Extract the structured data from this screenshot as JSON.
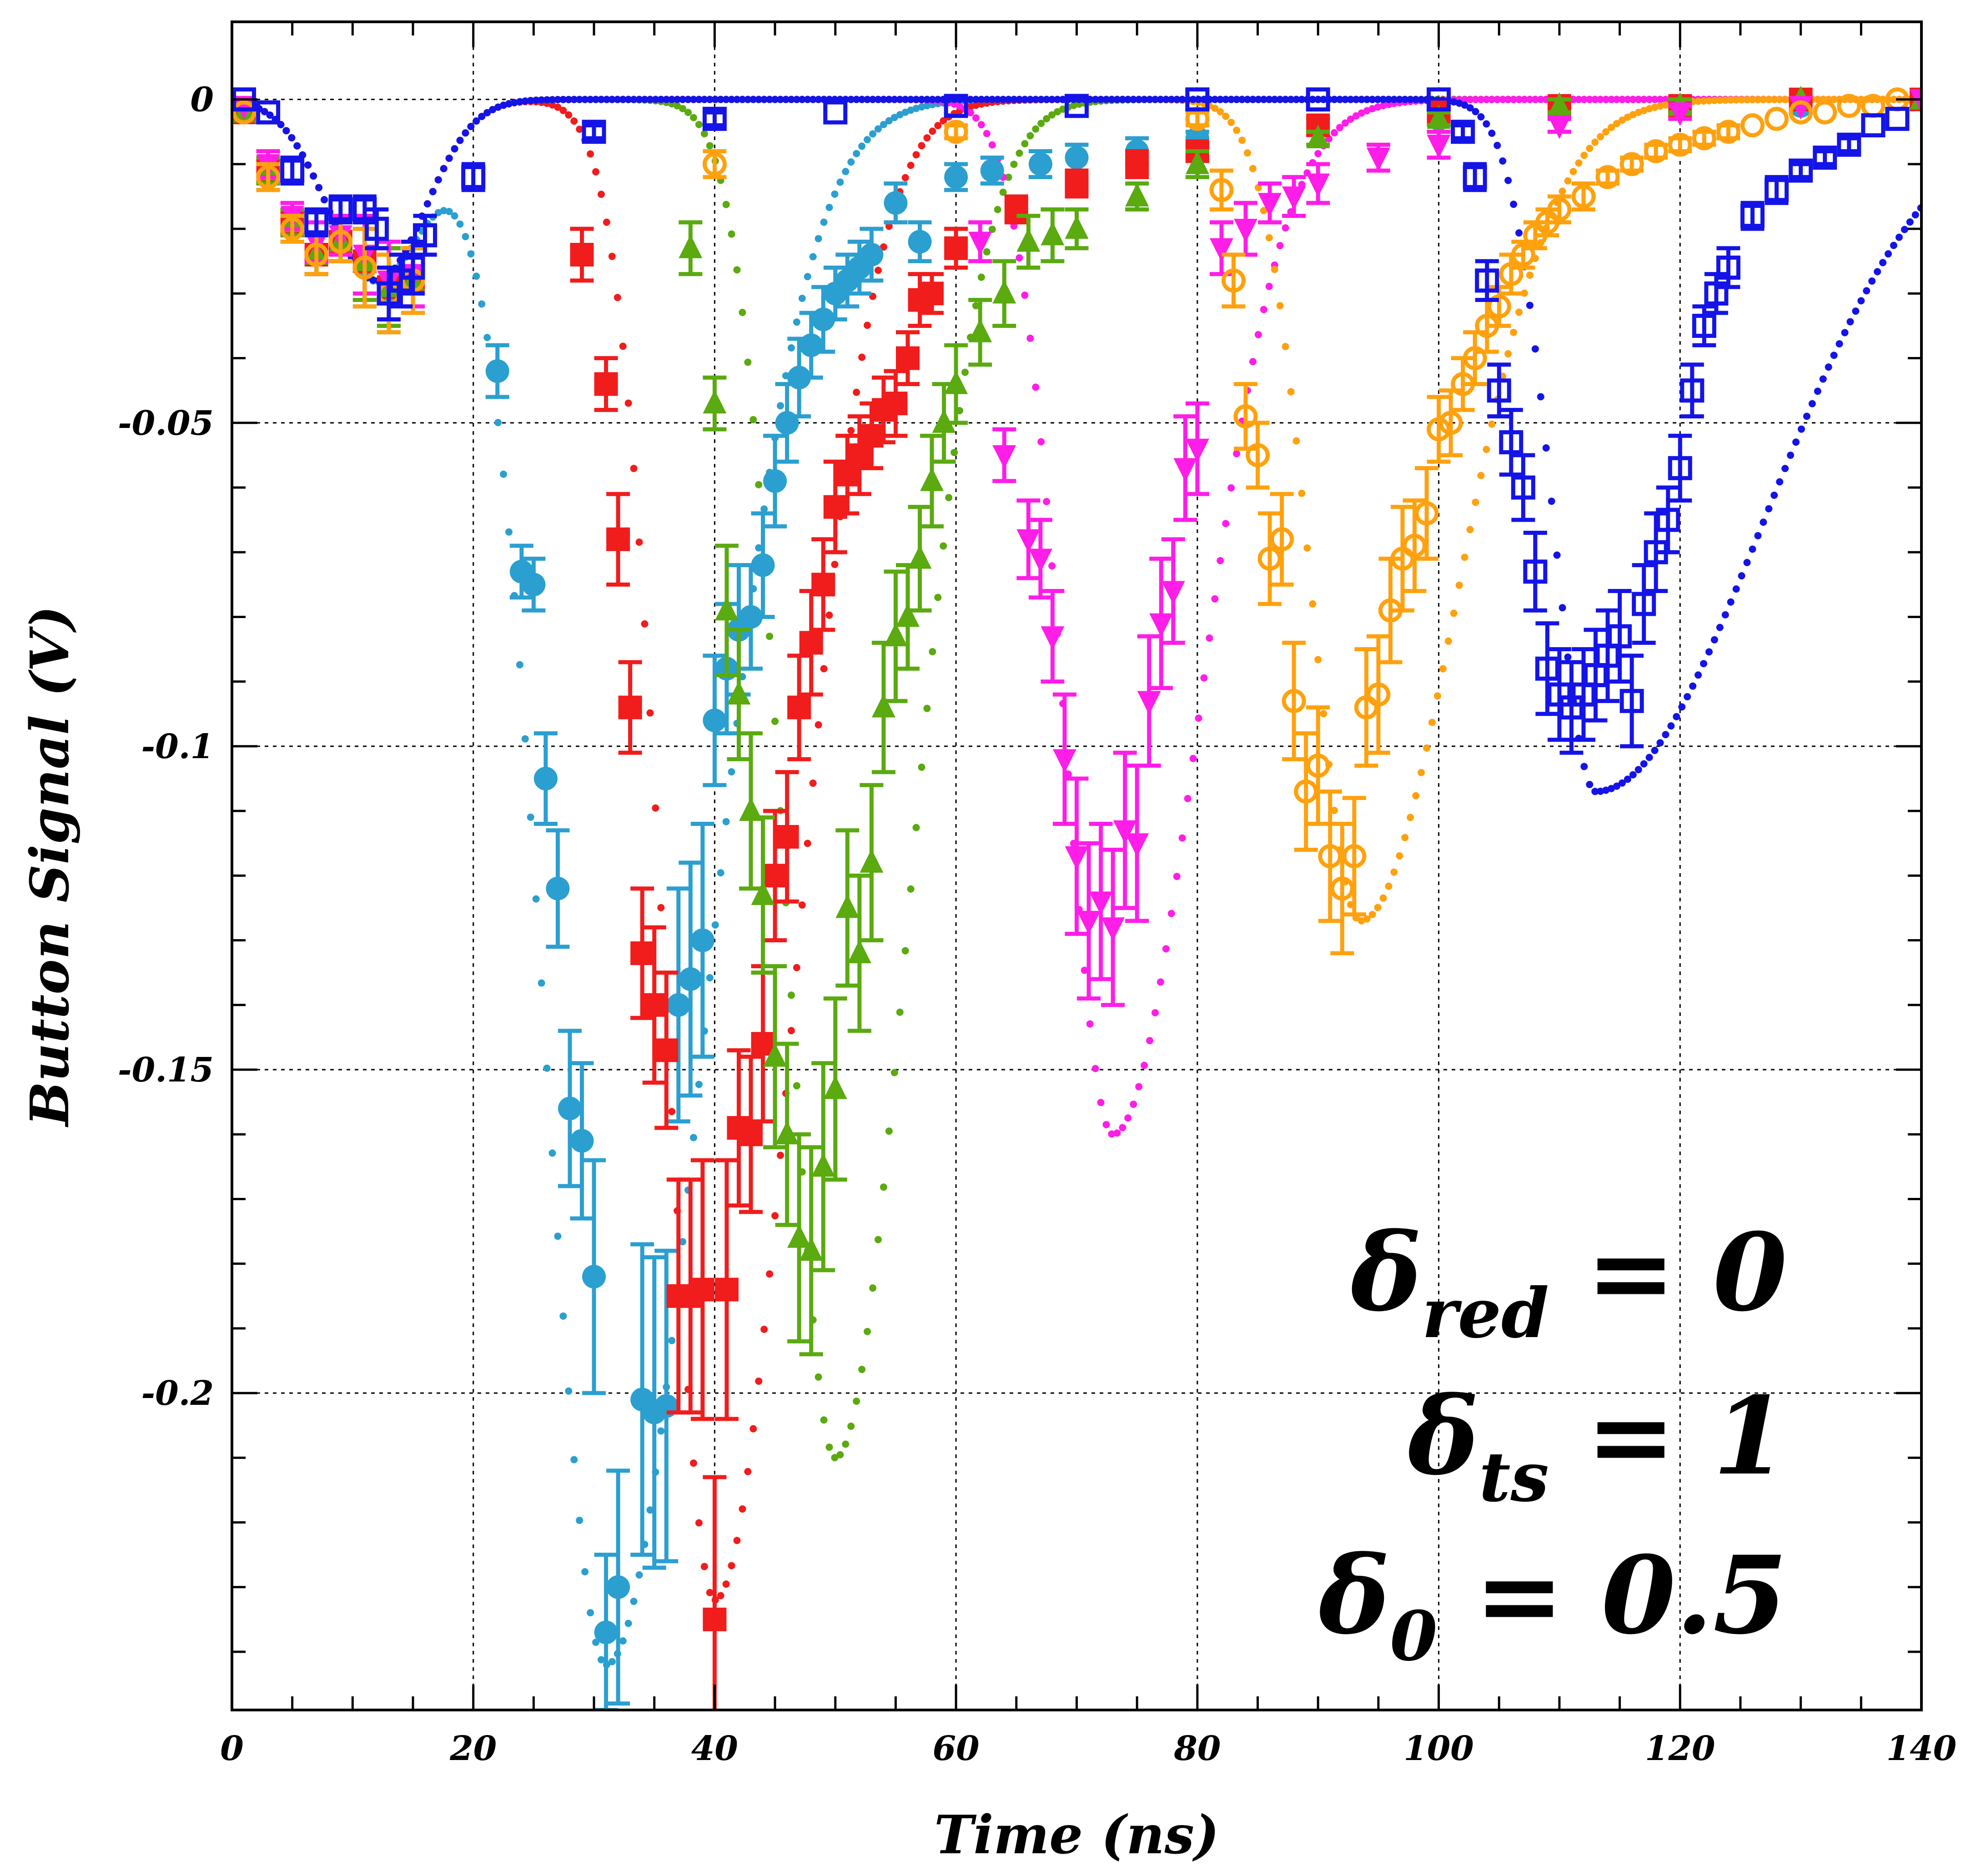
{
  "chart_data": {
    "type": "scatter",
    "xlabel": "Time (ns)",
    "ylabel": "Button Signal (V)",
    "xlim": [
      0,
      140
    ],
    "ylim": [
      -0.249,
      0.012
    ],
    "grid": true,
    "x_ticks": [
      0,
      20,
      40,
      60,
      80,
      100,
      120,
      140
    ],
    "x_tick_labels": [
      "0",
      "20",
      "40",
      "60",
      "80",
      "100",
      "120",
      "140"
    ],
    "y_ticks": [
      0,
      -0.05,
      -0.1,
      -0.15,
      -0.2
    ],
    "y_tick_labels": [
      "0",
      "-0.05",
      "-0.1",
      "-0.15",
      "-0.2"
    ],
    "annotation": [
      {
        "symbol": "δ",
        "sub": "red",
        "rest": " = 0"
      },
      {
        "symbol": "δ",
        "sub": "ts",
        "rest": " = 1"
      },
      {
        "symbol": "δ",
        "sub": "0",
        "rest": " = 0.5"
      }
    ],
    "series": [
      {
        "color": "#2b9fd0",
        "marker": "filled-circle",
        "x": [
          1,
          3,
          5,
          7,
          9,
          11,
          13,
          15,
          22,
          24,
          25,
          26,
          27,
          28,
          29,
          30,
          31,
          32,
          34,
          35,
          36,
          37,
          38,
          39,
          40,
          41,
          42,
          43,
          44,
          45,
          46,
          47,
          48,
          49,
          50,
          51,
          52,
          53,
          55,
          57,
          60,
          63,
          67,
          70,
          75,
          80,
          90,
          100,
          110,
          120,
          130,
          140
        ],
        "y": [
          -0.002,
          -0.012,
          -0.02,
          -0.024,
          -0.022,
          -0.026,
          -0.03,
          -0.028,
          -0.042,
          -0.073,
          -0.075,
          -0.105,
          -0.122,
          -0.156,
          -0.161,
          -0.182,
          -0.237,
          -0.23,
          -0.201,
          -0.203,
          -0.202,
          -0.14,
          -0.136,
          -0.13,
          -0.096,
          -0.088,
          -0.082,
          -0.08,
          -0.072,
          -0.059,
          -0.05,
          -0.043,
          -0.038,
          -0.034,
          -0.03,
          -0.028,
          -0.026,
          -0.024,
          -0.016,
          -0.022,
          -0.012,
          -0.011,
          -0.01,
          -0.009,
          -0.008,
          -0.006,
          -0.004,
          -0.003,
          -0.002,
          -0.001,
          -0.001,
          0
        ],
        "error": [
          0,
          0.002,
          0.002,
          0.003,
          0.003,
          0.006,
          0.006,
          0.005,
          0.004,
          0.004,
          0.004,
          0.007,
          0.009,
          0.012,
          0.012,
          0.018,
          0.012,
          0.018,
          0.024,
          0.024,
          0.024,
          0.018,
          0.018,
          0.018,
          0.01,
          0.01,
          0.01,
          0.008,
          0.008,
          0.007,
          0.006,
          0.006,
          0.005,
          0.005,
          0.004,
          0.004,
          0.004,
          0.004,
          0.003,
          0.003,
          0.002,
          0.002,
          0.002,
          0.002,
          0.002,
          0.001,
          0.001,
          0.001,
          0.001,
          0.001,
          0.001,
          0
        ],
        "fit": {
          "t0": 31,
          "amp": 0.242,
          "sigma_left": 5,
          "sigma_right": 8,
          "base_amp": 0.028,
          "base_t": 12,
          "base_sigma": 4
        }
      },
      {
        "color": "#f11c1c",
        "marker": "filled-square",
        "x": [
          1,
          3,
          5,
          7,
          9,
          11,
          13,
          15,
          29,
          31,
          32,
          33,
          34,
          35,
          36,
          37,
          38,
          39,
          40,
          41,
          42,
          43,
          44,
          45,
          46,
          47,
          48,
          49,
          50,
          51,
          52,
          53,
          54,
          55,
          56,
          57,
          58,
          60,
          65,
          70,
          75,
          80,
          90,
          100,
          110,
          120,
          130,
          140
        ],
        "y": [
          -0.002,
          -0.011,
          -0.019,
          -0.024,
          -0.022,
          -0.025,
          -0.029,
          -0.028,
          -0.024,
          -0.044,
          -0.068,
          -0.094,
          -0.132,
          -0.14,
          -0.147,
          -0.185,
          -0.185,
          -0.184,
          -0.235,
          -0.184,
          -0.159,
          -0.16,
          -0.146,
          -0.12,
          -0.114,
          -0.094,
          -0.084,
          -0.075,
          -0.063,
          -0.058,
          -0.055,
          -0.052,
          -0.048,
          -0.047,
          -0.04,
          -0.031,
          -0.03,
          -0.023,
          -0.017,
          -0.013,
          -0.01,
          -0.008,
          -0.004,
          -0.002,
          -0.001,
          -0.001,
          0,
          0
        ],
        "error": [
          0,
          0.002,
          0.002,
          0.003,
          0.003,
          0.006,
          0.006,
          0.005,
          0.004,
          0.004,
          0.007,
          0.007,
          0.01,
          0.012,
          0.012,
          0.018,
          0.018,
          0.02,
          0.022,
          0.02,
          0.012,
          0.012,
          0.012,
          0.01,
          0.01,
          0.008,
          0.008,
          0.007,
          0.007,
          0.006,
          0.006,
          0.005,
          0.005,
          0.005,
          0.004,
          0.004,
          0.003,
          0.003,
          0.002,
          0.002,
          0.002,
          0.001,
          0.001,
          0.001,
          0.001,
          0.001,
          0,
          0
        ],
        "fit": {
          "t0": 40,
          "amp": 0.232,
          "sigma_left": 4,
          "sigma_right": 6.5,
          "base_amp": 0.028,
          "base_t": 12,
          "base_sigma": 4
        }
      },
      {
        "color": "#5aaa10",
        "marker": "filled-triangle-up",
        "x": [
          1,
          3,
          5,
          7,
          9,
          11,
          13,
          15,
          38,
          40,
          41,
          42,
          43,
          44,
          45,
          46,
          47,
          48,
          49,
          50,
          51,
          52,
          53,
          54,
          55,
          56,
          57,
          58,
          59,
          60,
          62,
          64,
          66,
          68,
          70,
          75,
          80,
          90,
          100,
          110,
          120,
          130,
          140
        ],
        "y": [
          -0.002,
          -0.011,
          -0.019,
          -0.024,
          -0.022,
          -0.025,
          -0.029,
          -0.028,
          -0.023,
          -0.047,
          -0.079,
          -0.092,
          -0.11,
          -0.123,
          -0.148,
          -0.16,
          -0.176,
          -0.178,
          -0.165,
          -0.153,
          -0.125,
          -0.132,
          -0.118,
          -0.094,
          -0.083,
          -0.08,
          -0.071,
          -0.059,
          -0.05,
          -0.044,
          -0.036,
          -0.03,
          -0.022,
          -0.021,
          -0.02,
          -0.015,
          -0.01,
          -0.006,
          -0.003,
          -0.001,
          -0.001,
          0,
          0
        ],
        "error": [
          0,
          0.002,
          0.002,
          0.003,
          0.003,
          0.006,
          0.006,
          0.005,
          0.004,
          0.004,
          0.01,
          0.01,
          0.012,
          0.012,
          0.014,
          0.014,
          0.016,
          0.016,
          0.016,
          0.014,
          0.012,
          0.012,
          0.012,
          0.01,
          0.01,
          0.008,
          0.008,
          0.007,
          0.006,
          0.006,
          0.005,
          0.005,
          0.004,
          0.004,
          0.003,
          0.002,
          0.002,
          0.001,
          0.001,
          0.001,
          0.001,
          0,
          0
        ],
        "fit": {
          "t0": 50,
          "amp": 0.21,
          "sigma_left": 4,
          "sigma_right": 6,
          "base_amp": 0.028,
          "base_t": 12,
          "base_sigma": 4
        }
      },
      {
        "color": "#ff1de8",
        "marker": "filled-triangle-down",
        "x": [
          1,
          3,
          5,
          7,
          9,
          11,
          13,
          15,
          62,
          64,
          66,
          67,
          68,
          69,
          70,
          71,
          72,
          73,
          74,
          75,
          76,
          77,
          78,
          79,
          80,
          82,
          84,
          86,
          88,
          90,
          95,
          100,
          110,
          120,
          130,
          140
        ],
        "y": [
          -0.001,
          -0.01,
          -0.018,
          -0.022,
          -0.021,
          -0.024,
          -0.028,
          -0.027,
          -0.022,
          -0.055,
          -0.068,
          -0.071,
          -0.083,
          -0.102,
          -0.117,
          -0.127,
          -0.124,
          -0.128,
          -0.113,
          -0.115,
          -0.093,
          -0.081,
          -0.076,
          -0.057,
          -0.054,
          -0.023,
          -0.02,
          -0.016,
          -0.015,
          -0.013,
          -0.009,
          -0.007,
          -0.004,
          -0.002,
          -0.001,
          0
        ],
        "error": [
          0,
          0.002,
          0.002,
          0.003,
          0.003,
          0.006,
          0.006,
          0.005,
          0.003,
          0.004,
          0.006,
          0.006,
          0.007,
          0.01,
          0.012,
          0.012,
          0.012,
          0.012,
          0.012,
          0.012,
          0.01,
          0.01,
          0.008,
          0.008,
          0.007,
          0.004,
          0.004,
          0.003,
          0.003,
          0.003,
          0.002,
          0.002,
          0.001,
          0.001,
          0,
          0
        ],
        "fit": {
          "t0": 73,
          "amp": 0.16,
          "sigma_left": 4,
          "sigma_right": 7,
          "base_amp": 0.028,
          "base_t": 12,
          "base_sigma": 4
        }
      },
      {
        "color": "#ffa10e",
        "marker": "open-circle",
        "x": [
          1,
          3,
          5,
          7,
          9,
          11,
          13,
          15,
          40,
          60,
          80,
          82,
          83,
          84,
          85,
          86,
          87,
          88,
          89,
          90,
          91,
          92,
          93,
          94,
          95,
          96,
          97,
          98,
          99,
          100,
          101,
          102,
          103,
          104,
          105,
          106,
          107,
          108,
          109,
          110,
          112,
          114,
          116,
          118,
          120,
          122,
          124,
          126,
          128,
          130,
          132,
          134,
          136,
          138
        ],
        "y": [
          -0.002,
          -0.012,
          -0.02,
          -0.024,
          -0.022,
          -0.026,
          -0.03,
          -0.028,
          -0.01,
          -0.005,
          -0.003,
          -0.014,
          -0.028,
          -0.049,
          -0.055,
          -0.071,
          -0.068,
          -0.093,
          -0.107,
          -0.103,
          -0.117,
          -0.122,
          -0.117,
          -0.094,
          -0.092,
          -0.079,
          -0.071,
          -0.069,
          -0.064,
          -0.051,
          -0.05,
          -0.044,
          -0.04,
          -0.035,
          -0.032,
          -0.027,
          -0.024,
          -0.021,
          -0.019,
          -0.017,
          -0.015,
          -0.012,
          -0.01,
          -0.008,
          -0.007,
          -0.006,
          -0.005,
          -0.004,
          -0.003,
          -0.002,
          -0.002,
          -0.001,
          -0.001,
          0
        ],
        "error": [
          0,
          0.002,
          0.002,
          0.003,
          0.003,
          0.006,
          0.006,
          0.005,
          0.002,
          0.001,
          0.001,
          0.003,
          0.004,
          0.005,
          0.005,
          0.007,
          0.007,
          0.009,
          0.009,
          0.009,
          0.01,
          0.01,
          0.009,
          0.009,
          0.009,
          0.008,
          0.008,
          0.007,
          0.007,
          0.005,
          0.005,
          0.004,
          0.004,
          0.004,
          0.003,
          0.003,
          0.002,
          0.002,
          0.002,
          0.002,
          0.002,
          0.001,
          0.001,
          0.001,
          0.001,
          0.001,
          0.001,
          0,
          0,
          0,
          0,
          0,
          0,
          0
        ],
        "fit": {
          "t0": 93.5,
          "amp": 0.127,
          "sigma_left": 4,
          "sigma_right": 8,
          "base_amp": 0.028,
          "base_t": 12,
          "base_sigma": 4
        }
      },
      {
        "color": "#1414e8",
        "marker": "open-square",
        "x": [
          1,
          3,
          5,
          7,
          9,
          11,
          12,
          13,
          14,
          15,
          16,
          20,
          30,
          40,
          50,
          60,
          70,
          80,
          90,
          100,
          102,
          103,
          104,
          105,
          106,
          107,
          108,
          109,
          110,
          111,
          112,
          113,
          114,
          115,
          116,
          117,
          118,
          119,
          120,
          121,
          122,
          123,
          124,
          126,
          128,
          130,
          132,
          134,
          136,
          138
        ],
        "y": [
          0,
          -0.002,
          -0.011,
          -0.019,
          -0.017,
          -0.017,
          -0.02,
          -0.03,
          -0.028,
          -0.026,
          -0.021,
          -0.012,
          -0.005,
          -0.003,
          -0.002,
          -0.001,
          -0.001,
          0,
          0,
          0,
          -0.005,
          -0.012,
          -0.028,
          -0.045,
          -0.053,
          -0.06,
          -0.073,
          -0.088,
          -0.092,
          -0.094,
          -0.092,
          -0.089,
          -0.086,
          -0.083,
          -0.093,
          -0.078,
          -0.07,
          -0.065,
          -0.057,
          -0.045,
          -0.035,
          -0.03,
          -0.026,
          -0.018,
          -0.014,
          -0.011,
          -0.009,
          -0.007,
          -0.004,
          -0.003
        ],
        "error": [
          0,
          0,
          0.002,
          0.002,
          0.002,
          0.002,
          0.003,
          0.004,
          0.004,
          0.004,
          0.003,
          0.002,
          0.001,
          0.001,
          0,
          0,
          0,
          0,
          0,
          0,
          0.001,
          0.002,
          0.003,
          0.004,
          0.005,
          0.005,
          0.006,
          0.007,
          0.007,
          0.007,
          0.007,
          0.007,
          0.007,
          0.007,
          0.007,
          0.006,
          0.006,
          0.005,
          0.005,
          0.004,
          0.003,
          0.003,
          0.003,
          0.002,
          0.002,
          0.001,
          0.001,
          0.001,
          0,
          0
        ],
        "fit": {
          "t0": 113,
          "amp": 0.107,
          "sigma_left": 3.5,
          "sigma_right": 14,
          "base_amp": 0.028,
          "base_t": 12,
          "base_sigma": 4
        }
      }
    ]
  }
}
